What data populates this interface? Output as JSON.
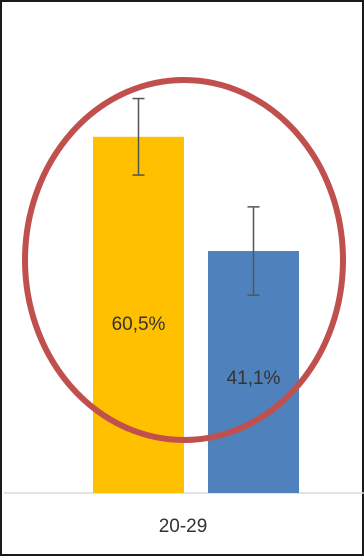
{
  "chart_data": {
    "type": "bar",
    "categories": [
      "20-29"
    ],
    "series": [
      {
        "values": [
          60.5
        ],
        "errors": [
          6.5
        ],
        "color": "#FFC000"
      },
      {
        "values": [
          41.1
        ],
        "errors": [
          7.5
        ],
        "color": "#4F81BD"
      }
    ],
    "data_labels": [
      "60,5%",
      "41,1%"
    ],
    "ylim": [
      0,
      80
    ],
    "grid": false,
    "annotation": {
      "shape": "ellipse",
      "color": "#C0504D",
      "encircles": "both bars"
    }
  }
}
